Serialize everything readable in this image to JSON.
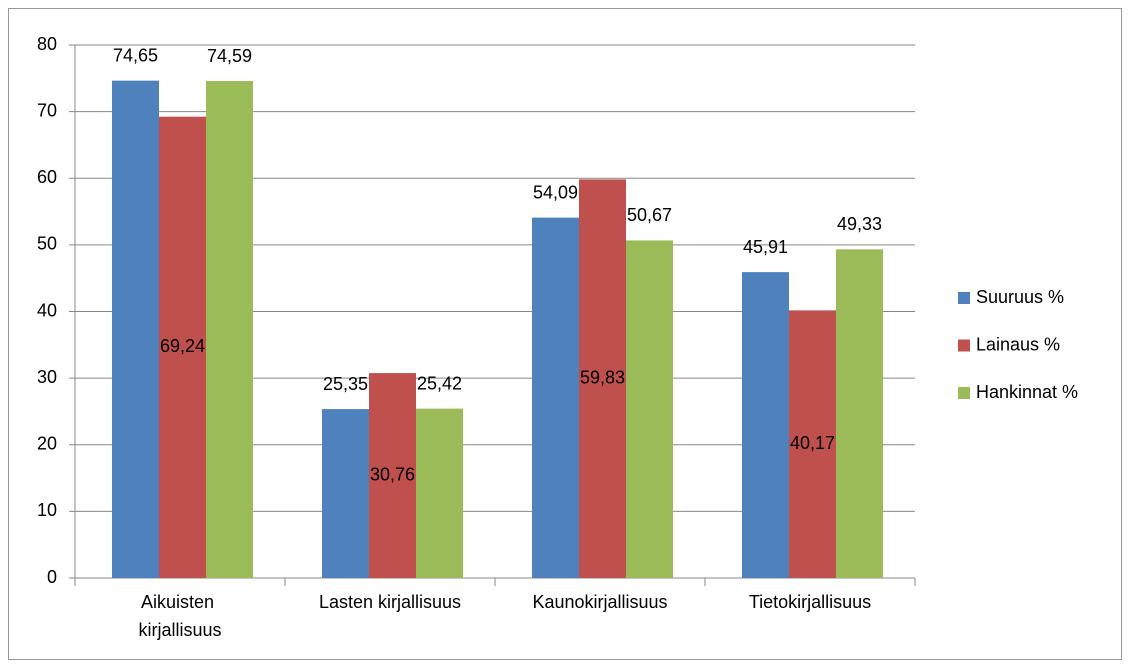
{
  "chart_data": {
    "type": "bar",
    "categories": [
      "Aikuisten kirjallisuus",
      "Lasten kirjallisuus",
      "Kaunokirjallisuus",
      "Tietokirjallisuus"
    ],
    "series": [
      {
        "name": "Suuruus %",
        "color": "#4f81bd",
        "values": [
          74.65,
          25.35,
          54.09,
          45.91
        ],
        "value_labels": [
          "74,65",
          "25,35",
          "54,09",
          "45,91"
        ]
      },
      {
        "name": "Lainaus %",
        "color": "#c0504d",
        "values": [
          69.24,
          30.76,
          59.83,
          40.17
        ],
        "value_labels": [
          "69,24",
          "30,76",
          "59,83",
          "40,17"
        ]
      },
      {
        "name": "Hankinnat %",
        "color": "#9bbb59",
        "values": [
          74.59,
          25.42,
          50.67,
          49.33
        ],
        "value_labels": [
          "74,59",
          "25,42",
          "50,67",
          "49,33"
        ]
      }
    ],
    "ylim": [
      0,
      80
    ],
    "yticks": [
      0,
      10,
      20,
      30,
      40,
      50,
      60,
      70,
      80
    ],
    "grid": true,
    "legend": "right"
  }
}
